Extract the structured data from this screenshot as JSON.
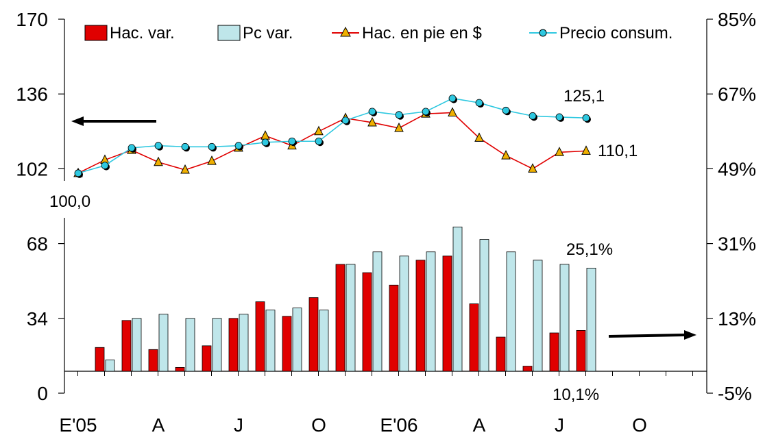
{
  "chart_data": {
    "type": "bar+line",
    "months_per_tick": 3,
    "x_tick_labels": [
      "E'05",
      "A",
      "J",
      "O",
      "E'06",
      "A",
      "J",
      "O"
    ],
    "left_axis": {
      "ticks": [
        0,
        34,
        68,
        102,
        136,
        170
      ],
      "labels": [
        "0",
        "34",
        "68",
        "102",
        "136",
        "170"
      ],
      "range": [
        0,
        170
      ]
    },
    "right_axis": {
      "ticks": [
        -0.05,
        0.13,
        0.31,
        0.49,
        0.67,
        0.85
      ],
      "labels": [
        "-5%",
        "13%",
        "31%",
        "49%",
        "67%",
        "85%"
      ],
      "range": [
        -0.05,
        0.85
      ]
    },
    "series": [
      {
        "name": "Hac. var.",
        "kind": "bar",
        "axis": "right",
        "color": "#e00000",
        "values": [
          0.06,
          0.125,
          0.055,
          0.012,
          0.064,
          0.13,
          0.17,
          0.135,
          0.18,
          0.26,
          0.24,
          0.21,
          0.27,
          0.28,
          0.165,
          0.085,
          0.015,
          0.095,
          0.101
        ]
      },
      {
        "name": "Pc var.",
        "kind": "bar",
        "axis": "right",
        "color": "#bfe6ea",
        "values": [
          0.03,
          0.13,
          0.14,
          0.13,
          0.13,
          0.14,
          0.15,
          0.155,
          0.15,
          0.26,
          0.29,
          0.28,
          0.29,
          0.35,
          0.32,
          0.29,
          0.27,
          0.26,
          0.251
        ]
      },
      {
        "name": "Hac. en pie en $",
        "kind": "line",
        "axis": "left",
        "color": "#e00000",
        "marker": "triangle",
        "values": [
          100.0,
          106.0,
          110.5,
          105.0,
          101.5,
          105.5,
          111.5,
          117.0,
          112.5,
          119.0,
          125.0,
          123.0,
          120.5,
          127.0,
          127.5,
          116.0,
          108.0,
          102.0,
          109.5,
          110.1
        ]
      },
      {
        "name": "Precio consum.",
        "kind": "line",
        "axis": "left",
        "color": "#2ec8e0",
        "marker": "circle",
        "values": [
          100.0,
          103.5,
          111.5,
          112.5,
          112.0,
          112.0,
          112.5,
          114.0,
          114.5,
          114.5,
          124.0,
          128.0,
          126.5,
          128.0,
          134.0,
          132.0,
          128.5,
          126.0,
          125.5,
          125.1
        ]
      }
    ],
    "annotations": {
      "start_value": "100,0",
      "hac_end": "110,1",
      "pc_end": "125,1",
      "pc_var_end": "25,1%",
      "hac_var_end": "10,1%"
    },
    "legend_position": "top"
  }
}
